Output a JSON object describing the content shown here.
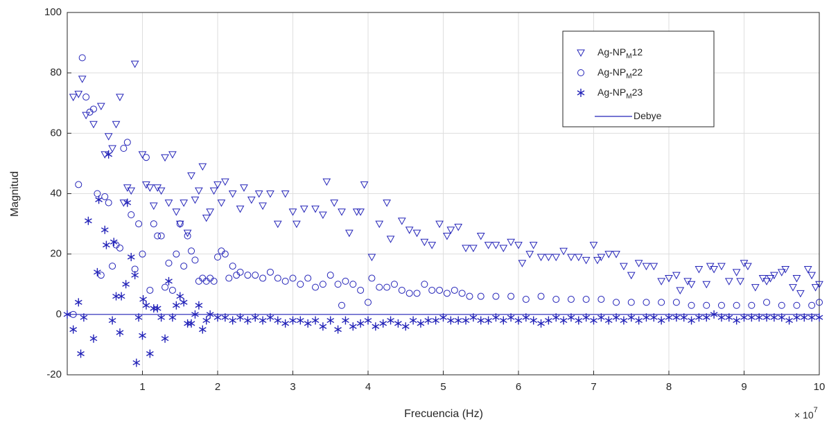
{
  "chart_data": {
    "type": "scatter",
    "ylabel": "Magnitud",
    "xlabel": "Frecuencia (Hz)",
    "x_multiplier": "× 10",
    "x_multiplier_power": "7",
    "xlim": [
      0,
      10
    ],
    "xticks": [
      1,
      2,
      3,
      4,
      5,
      6,
      7,
      8,
      9,
      10
    ],
    "ylim": [
      -20,
      100
    ],
    "yticks": [
      -20,
      0,
      20,
      40,
      60,
      80,
      100
    ],
    "grid": true,
    "legend": "upper right",
    "series": [
      {
        "name": "Ag-NP",
        "name_subscript": "M",
        "name_suffix": "12",
        "marker": "triangle-down",
        "color": "#2323b8",
        "x": [
          0.08,
          0.15,
          0.2,
          0.25,
          0.35,
          0.45,
          0.5,
          0.55,
          0.6,
          0.65,
          0.7,
          0.75,
          0.8,
          0.85,
          0.9,
          1.0,
          1.05,
          1.1,
          1.15,
          1.2,
          1.25,
          1.3,
          1.35,
          1.4,
          1.45,
          1.5,
          1.55,
          1.6,
          1.65,
          1.7,
          1.75,
          1.8,
          1.85,
          1.9,
          1.95,
          2.0,
          2.05,
          2.1,
          2.2,
          2.3,
          2.35,
          2.45,
          2.55,
          2.6,
          2.7,
          2.8,
          2.9,
          3.0,
          3.05,
          3.15,
          3.3,
          3.4,
          3.45,
          3.55,
          3.65,
          3.75,
          3.85,
          3.9,
          3.95,
          4.05,
          4.15,
          4.25,
          4.3,
          4.45,
          4.55,
          4.65,
          4.75,
          4.85,
          4.95,
          5.05,
          5.1,
          5.2,
          5.3,
          5.4,
          5.5,
          5.6,
          5.7,
          5.8,
          5.9,
          6.0,
          6.05,
          6.15,
          6.2,
          6.3,
          6.4,
          6.5,
          6.6,
          6.7,
          6.8,
          6.9,
          7.0,
          7.05,
          7.1,
          7.2,
          7.3,
          7.4,
          7.5,
          7.6,
          7.7,
          7.8,
          7.9,
          8.0,
          8.1,
          8.15,
          8.25,
          8.3,
          8.4,
          8.5,
          8.55,
          8.6,
          8.7,
          8.8,
          8.9,
          8.95,
          9.0,
          9.05,
          9.15,
          9.25,
          9.3,
          9.35,
          9.4,
          9.5,
          9.55,
          9.65,
          9.7,
          9.75,
          9.85,
          9.9,
          9.95,
          10.0
        ],
        "values": [
          72,
          73,
          78,
          66,
          63,
          69,
          53,
          59,
          55,
          63,
          72,
          37,
          42,
          41,
          83,
          53,
          43,
          42,
          36,
          42,
          41,
          52,
          37,
          53,
          34,
          30,
          37,
          27,
          46,
          38,
          41,
          49,
          32,
          34,
          41,
          43,
          37,
          44,
          40,
          35,
          42,
          38,
          40,
          36,
          40,
          30,
          40,
          34,
          30,
          35,
          35,
          33,
          44,
          37,
          34,
          27,
          34,
          34,
          43,
          19,
          30,
          37,
          25,
          31,
          28,
          27,
          24,
          23,
          30,
          26,
          28,
          29,
          22,
          22,
          26,
          23,
          23,
          22,
          24,
          23,
          17,
          20,
          23,
          19,
          19,
          19,
          21,
          19,
          19,
          18,
          23,
          18,
          19,
          20,
          20,
          16,
          13,
          17,
          16,
          16,
          11,
          12,
          13,
          8,
          11,
          10,
          15,
          10,
          16,
          15,
          16,
          11,
          14,
          11,
          17,
          16,
          9,
          12,
          11,
          12,
          13,
          14,
          15,
          9,
          12,
          7,
          15,
          13,
          9,
          10
        ]
      },
      {
        "name": "Ag-NP",
        "name_subscript": "M",
        "name_suffix": "22",
        "marker": "circle",
        "color": "#2323b8",
        "x": [
          0.08,
          0.15,
          0.2,
          0.25,
          0.3,
          0.35,
          0.4,
          0.45,
          0.5,
          0.55,
          0.6,
          0.65,
          0.7,
          0.75,
          0.8,
          0.85,
          0.9,
          0.95,
          1.0,
          1.05,
          1.1,
          1.15,
          1.2,
          1.25,
          1.3,
          1.35,
          1.4,
          1.45,
          1.5,
          1.55,
          1.6,
          1.65,
          1.7,
          1.75,
          1.8,
          1.85,
          1.9,
          1.95,
          2.0,
          2.05,
          2.1,
          2.15,
          2.2,
          2.25,
          2.3,
          2.4,
          2.5,
          2.6,
          2.7,
          2.8,
          2.9,
          3.0,
          3.1,
          3.2,
          3.3,
          3.4,
          3.5,
          3.6,
          3.65,
          3.7,
          3.8,
          3.9,
          4.0,
          4.05,
          4.15,
          4.25,
          4.35,
          4.45,
          4.55,
          4.65,
          4.75,
          4.85,
          4.95,
          5.05,
          5.15,
          5.25,
          5.35,
          5.5,
          5.7,
          5.9,
          6.1,
          6.3,
          6.5,
          6.7,
          6.9,
          7.1,
          7.3,
          7.5,
          7.7,
          7.9,
          8.1,
          8.3,
          8.5,
          8.7,
          8.9,
          9.1,
          9.3,
          9.5,
          9.7,
          9.9,
          10.0
        ],
        "values": [
          0,
          43,
          85,
          72,
          67,
          68,
          40,
          13,
          39,
          37,
          16,
          23,
          22,
          55,
          57,
          33,
          15,
          30,
          20,
          52,
          8,
          30,
          26,
          26,
          9,
          17,
          8,
          20,
          30,
          16,
          26,
          21,
          18,
          11,
          12,
          11,
          12,
          11,
          19,
          21,
          20,
          12,
          16,
          13,
          14,
          13,
          13,
          12,
          14,
          12,
          11,
          12,
          10,
          12,
          9,
          10,
          13,
          10,
          3,
          11,
          10,
          8,
          4,
          12,
          9,
          9,
          10,
          8,
          7,
          7,
          10,
          8,
          8,
          7,
          8,
          7,
          6,
          6,
          6,
          6,
          5,
          6,
          5,
          5,
          5,
          5,
          4,
          4,
          4,
          4,
          4,
          3,
          3,
          3,
          3,
          3,
          4,
          3,
          3,
          3,
          4
        ]
      },
      {
        "name": "Ag-NP",
        "name_subscript": "M",
        "name_suffix": "23",
        "marker": "asterisk",
        "color": "#2323b8",
        "x": [
          0.0,
          0.08,
          0.15,
          0.18,
          0.22,
          0.28,
          0.35,
          0.4,
          0.42,
          0.5,
          0.52,
          0.55,
          0.6,
          0.62,
          0.65,
          0.7,
          0.72,
          0.78,
          0.8,
          0.85,
          0.9,
          0.92,
          0.95,
          1.0,
          1.01,
          1.05,
          1.1,
          1.15,
          1.2,
          1.25,
          1.3,
          1.35,
          1.4,
          1.45,
          1.5,
          1.55,
          1.6,
          1.65,
          1.7,
          1.75,
          1.8,
          1.85,
          1.9,
          2.0,
          2.1,
          2.2,
          2.3,
          2.4,
          2.5,
          2.6,
          2.7,
          2.8,
          2.9,
          3.0,
          3.1,
          3.2,
          3.3,
          3.4,
          3.5,
          3.6,
          3.7,
          3.8,
          3.9,
          4.0,
          4.1,
          4.2,
          4.3,
          4.4,
          4.5,
          4.6,
          4.7,
          4.8,
          4.9,
          5.0,
          5.1,
          5.2,
          5.3,
          5.4,
          5.5,
          5.6,
          5.7,
          5.8,
          5.9,
          6.0,
          6.1,
          6.2,
          6.3,
          6.4,
          6.5,
          6.6,
          6.7,
          6.8,
          6.9,
          7.0,
          7.1,
          7.2,
          7.3,
          7.4,
          7.5,
          7.6,
          7.7,
          7.8,
          7.9,
          8.0,
          8.1,
          8.2,
          8.3,
          8.4,
          8.5,
          8.6,
          8.7,
          8.8,
          8.9,
          9.0,
          9.1,
          9.2,
          9.3,
          9.4,
          9.5,
          9.6,
          9.7,
          9.8,
          9.9,
          10.0
        ],
        "values": [
          0,
          -5,
          4,
          -13,
          -1,
          31,
          -8,
          14,
          38,
          28,
          23,
          53,
          -2,
          24,
          6,
          -6,
          6,
          10,
          37,
          19,
          13,
          -16,
          -1,
          -7,
          5,
          3,
          -13,
          2,
          2,
          -1,
          -8,
          11,
          -1,
          3,
          6,
          4,
          -3,
          -3,
          0,
          3,
          -5,
          -2,
          0,
          -1,
          -1,
          -2,
          -1,
          -2,
          -1,
          -2,
          -1,
          -2,
          -3,
          -2,
          -2,
          -3,
          -2,
          -4,
          -2,
          -5,
          -2,
          -4,
          -3,
          -2,
          -4,
          -3,
          -2,
          -3,
          -4,
          -2,
          -3,
          -2,
          -2,
          -1,
          -2,
          -2,
          -2,
          -1,
          -2,
          -2,
          -1,
          -2,
          -1,
          -2,
          -1,
          -2,
          -3,
          -2,
          -1,
          -2,
          -1,
          -2,
          -1,
          -2,
          -1,
          -2,
          -1,
          -2,
          -1,
          -2,
          -1,
          -1,
          -2,
          -1,
          -1,
          -1,
          -2,
          -1,
          -1,
          0,
          -1,
          -1,
          -2,
          -1,
          -1,
          -1,
          -1,
          -1,
          -1,
          -2,
          -1,
          -1,
          -1,
          -1
        ]
      },
      {
        "name": "Debye",
        "marker": "line",
        "color": "#2323b8",
        "x": [
          0,
          10
        ],
        "values": [
          0,
          0
        ]
      }
    ]
  }
}
